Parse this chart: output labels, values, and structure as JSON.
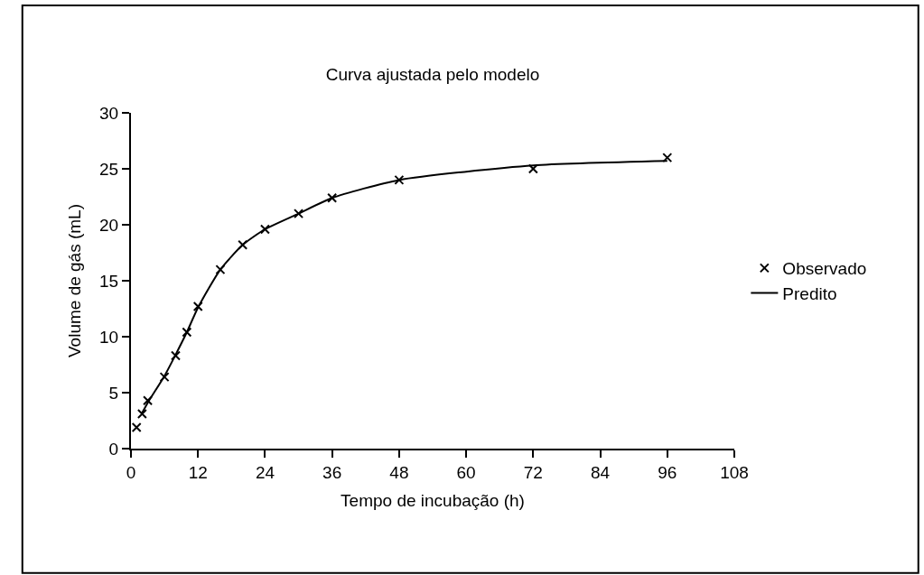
{
  "chart_data": {
    "type": "scatter",
    "title": "Curva ajustada pelo modelo",
    "xlabel": "Tempo de incubação (h)",
    "ylabel": "Volume de gás (mL)",
    "series": [
      {
        "name": "Observado",
        "marker": "cross",
        "color": "#000000",
        "x": [
          1,
          2,
          3,
          6,
          8,
          10,
          12,
          16,
          20,
          24,
          30,
          36,
          48,
          72,
          96
        ],
        "values": [
          1.9,
          3.1,
          4.3,
          6.4,
          8.3,
          10.4,
          12.7,
          16.0,
          18.2,
          19.6,
          21.0,
          22.4,
          24.0,
          25.0,
          26.0
        ]
      },
      {
        "name": "Predito",
        "type": "line",
        "marker": "none",
        "line_style": "solid",
        "color": "#000000",
        "x": [
          2,
          3,
          6,
          8,
          10,
          12,
          16,
          20,
          24,
          30,
          36,
          48,
          72,
          96
        ],
        "values": [
          3.2,
          4.1,
          6.5,
          8.4,
          10.4,
          12.6,
          16.0,
          18.2,
          19.6,
          21.0,
          22.4,
          24.0,
          25.3,
          25.7
        ]
      }
    ],
    "xlim": [
      0,
      108
    ],
    "xticks": [
      0,
      12,
      24,
      36,
      48,
      60,
      72,
      84,
      96,
      108
    ],
    "ylim": [
      0,
      30
    ],
    "yticks": [
      0,
      5,
      10,
      15,
      20,
      25,
      30
    ],
    "grid": false,
    "legend": "right"
  }
}
